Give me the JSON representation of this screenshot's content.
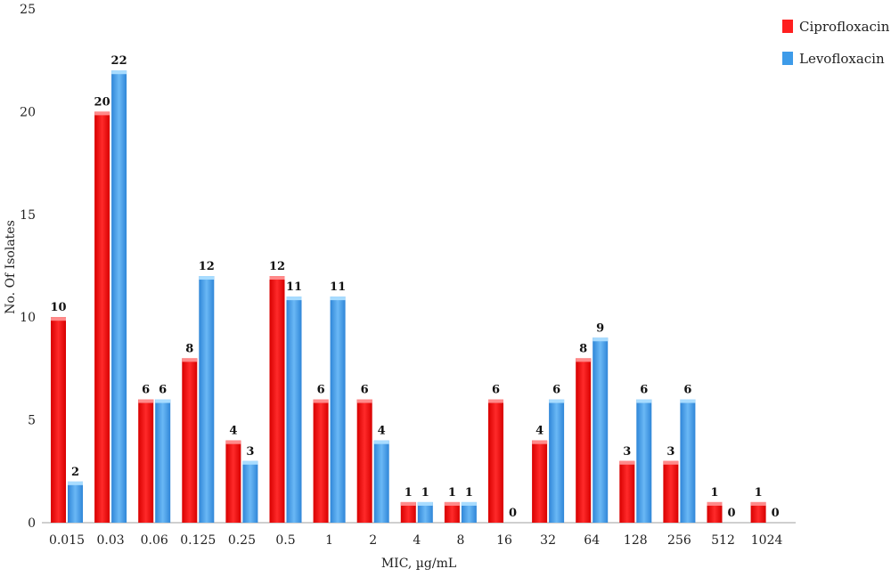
{
  "chart_data": {
    "type": "bar",
    "title": "",
    "xlabel": "MIC, µg/mL",
    "ylabel": "No. Of Isolates",
    "ylim": [
      0,
      25
    ],
    "yticks": [
      0,
      5,
      10,
      15,
      20,
      25
    ],
    "grid": false,
    "legend_position": "top-right",
    "categories": [
      "0.015",
      "0.03",
      "0.06",
      "0.125",
      "0.25",
      "0.5",
      "1",
      "2",
      "4",
      "8",
      "16",
      "32",
      "64",
      "128",
      "256",
      "512",
      "1024"
    ],
    "series": [
      {
        "name": "Ciprofloxacin",
        "color": "#ff1f1f",
        "values": [
          10,
          20,
          6,
          8,
          4,
          12,
          6,
          6,
          1,
          1,
          6,
          4,
          8,
          3,
          3,
          1,
          1
        ]
      },
      {
        "name": "Levofloxacin",
        "color": "#3d9be9",
        "values": [
          2,
          22,
          6,
          12,
          3,
          11,
          11,
          4,
          1,
          1,
          0,
          6,
          9,
          6,
          6,
          0,
          0
        ]
      }
    ]
  }
}
